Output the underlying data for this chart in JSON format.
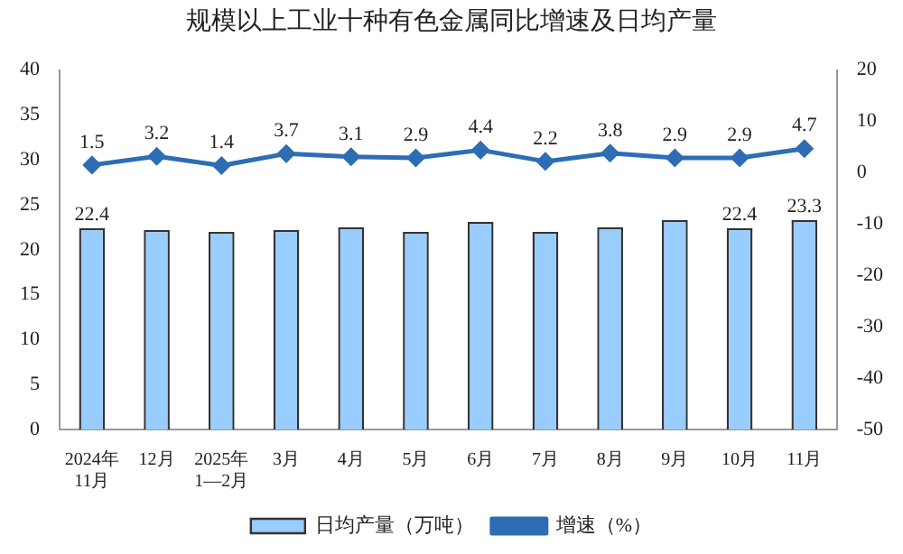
{
  "chart_data": {
    "type": "bar",
    "title": "规模以上工业十种有色金属同比增速及日均产量",
    "categories": [
      "2024年\n11月",
      "12月",
      "2025年\n1—2月",
      "3月",
      "4月",
      "5月",
      "6月",
      "7月",
      "8月",
      "9月",
      "10月",
      "11月"
    ],
    "series": [
      {
        "name": "日均产量（万吨）",
        "color": "#99ccff",
        "values": [
          22.4,
          22.2,
          22.0,
          22.2,
          22.5,
          22.0,
          23.1,
          22.0,
          22.5,
          23.3,
          22.4,
          23.3
        ],
        "value_labels": [
          "22.4",
          null,
          null,
          null,
          null,
          null,
          null,
          null,
          null,
          null,
          "22.4",
          "23.3"
        ]
      },
      {
        "name": "增速（%）",
        "type": "line",
        "axis": "y2",
        "color": "#2e6db4",
        "values": [
          1.5,
          3.2,
          1.4,
          3.7,
          3.1,
          2.9,
          4.4,
          2.2,
          3.8,
          2.9,
          2.9,
          4.7
        ],
        "data_labels": true
      }
    ],
    "ylim": [
      0,
      40
    ],
    "yticks": [
      0,
      5,
      10,
      15,
      20,
      25,
      30,
      35,
      40
    ],
    "y2lim": [
      -50,
      20
    ],
    "y2ticks": [
      -50,
      -40,
      -30,
      -20,
      -10,
      0,
      10,
      20
    ],
    "grid": false,
    "legend": "bottom",
    "marker": "diamond"
  }
}
